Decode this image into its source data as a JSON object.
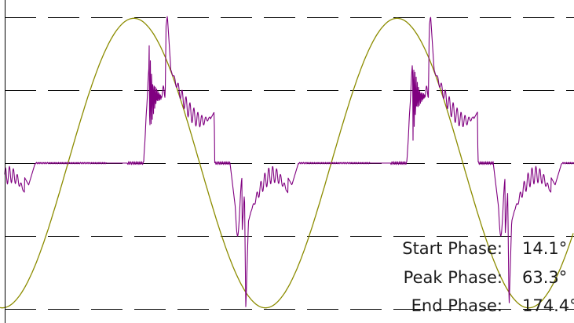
{
  "chart_data": {
    "type": "line",
    "title": "",
    "xlabel": "",
    "ylabel": "",
    "grid": true,
    "xlim": [
      -15,
      770
    ],
    "ylim": [
      -1.05,
      1.05
    ],
    "gridlines_y": [
      -1.0,
      -0.5,
      0.0,
      0.5,
      1.0
    ],
    "series": [
      {
        "color": "#8c8c00",
        "style": "smooth sinusoid"
      },
      {
        "color": "#800080",
        "style": "switched square-wave trace with ringing"
      }
    ],
    "annotations": [
      {
        "label": "Start Phase:",
        "value": "14.1°"
      },
      {
        "label": "Peak Phase:",
        "value": "63.3°"
      },
      {
        "label": "End Phase:",
        "value": "174.4°"
      }
    ]
  }
}
